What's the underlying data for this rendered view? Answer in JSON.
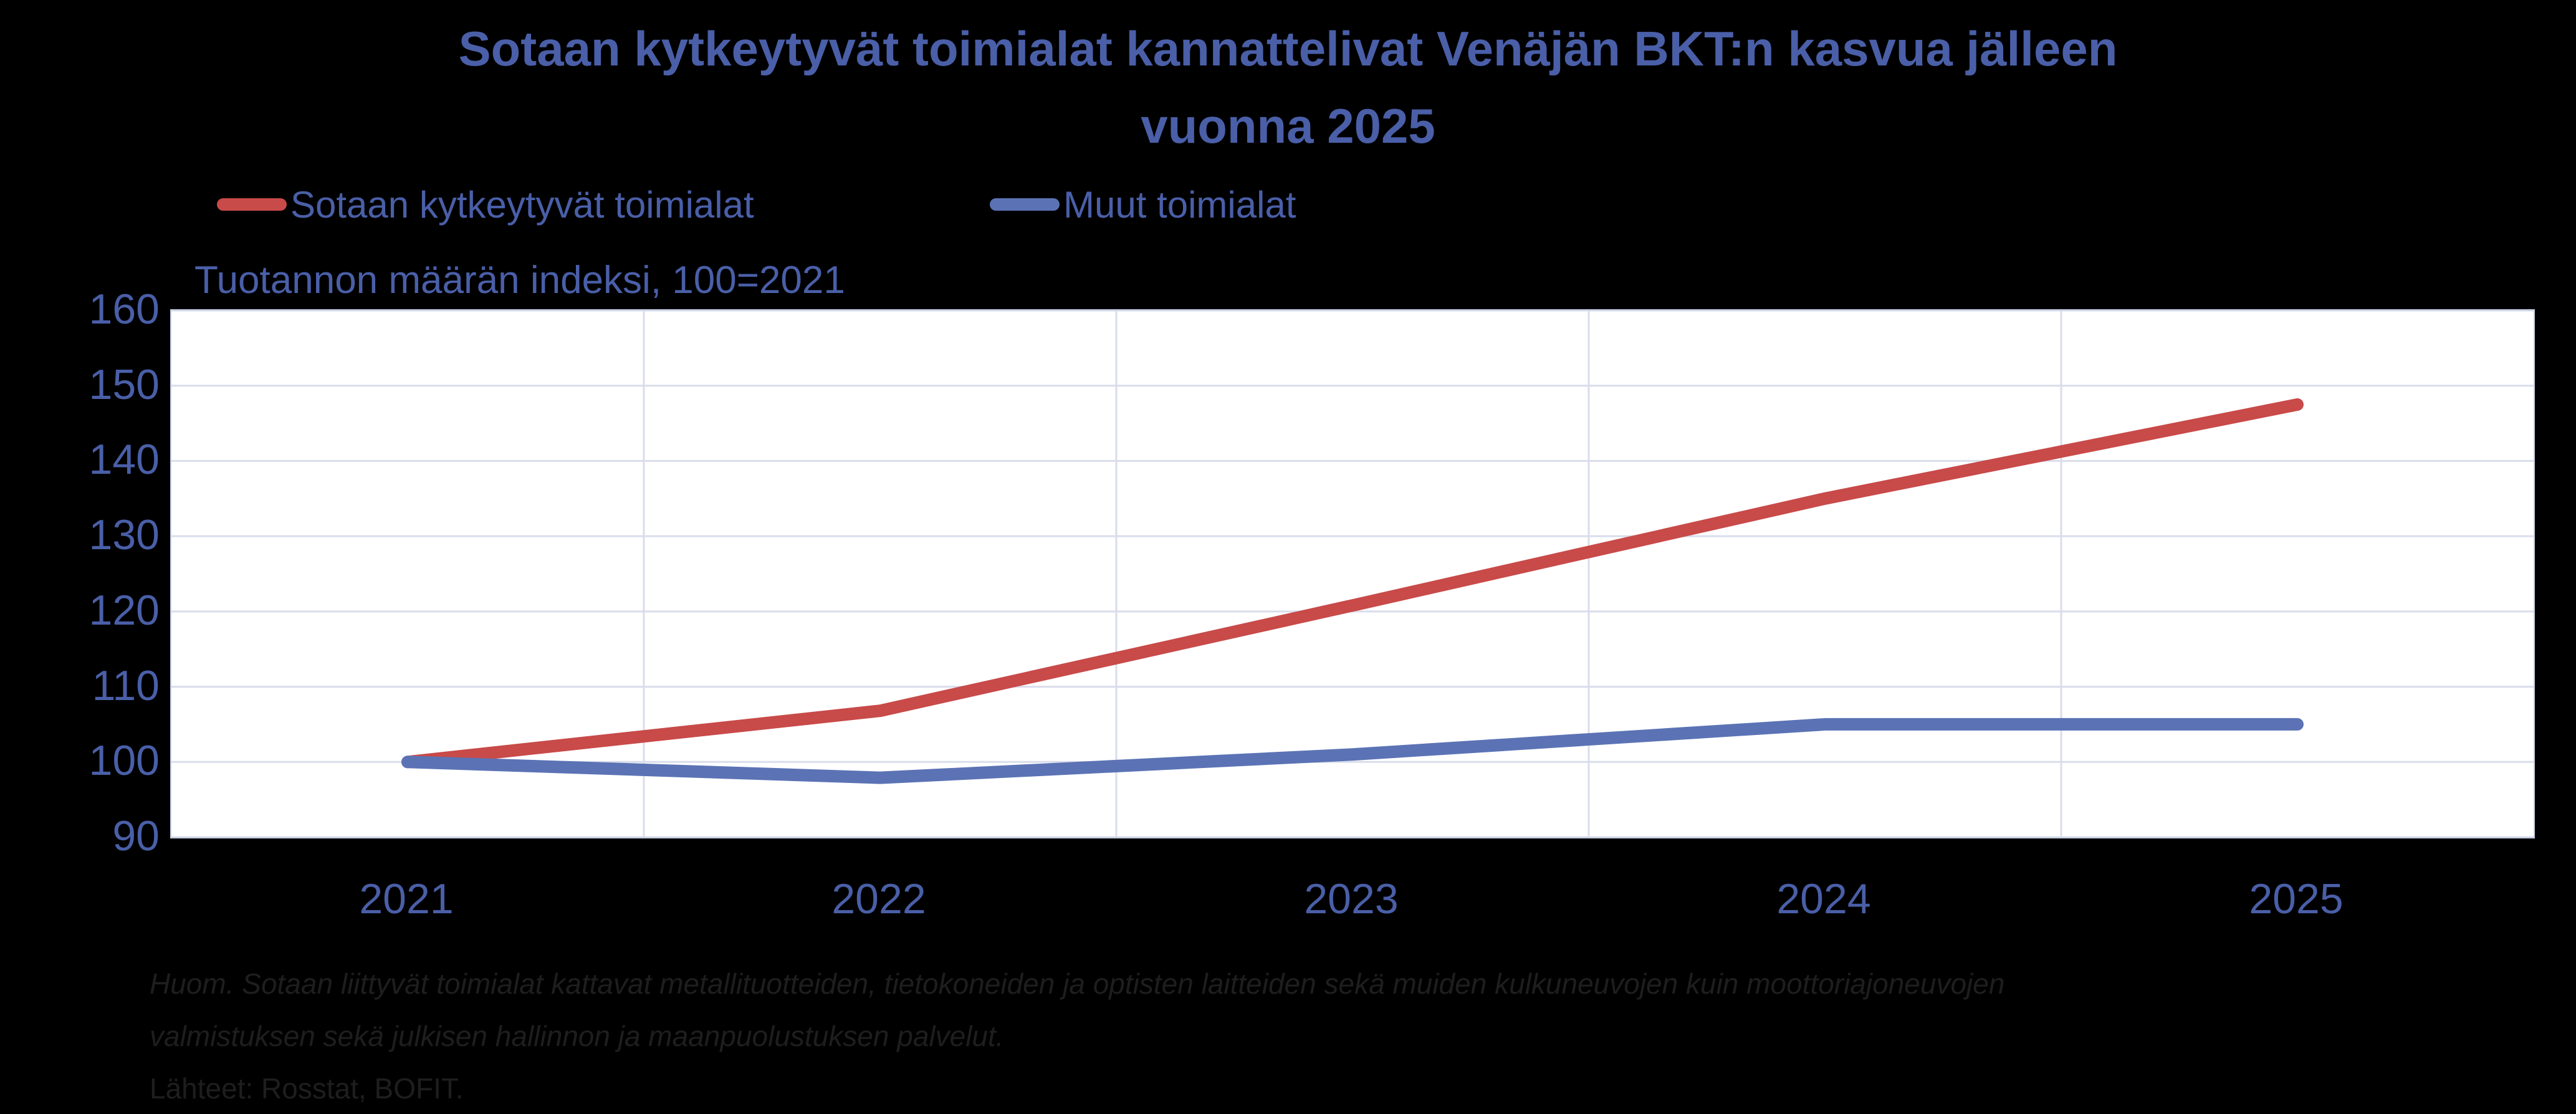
{
  "page": {
    "background": "#000000"
  },
  "header": {
    "title_lines": [
      "Sotaan kytkeytyvät toimialat kannattelivat Venäjän BKT:n kasvua jälleen",
      "vuonna 2025"
    ]
  },
  "colors": {
    "text_blue": "#4A5FA8",
    "series_red": "#C84A49",
    "series_blue": "#5B73B5",
    "gridline": "#D9DDEB",
    "plot_border": "#C7CDE0",
    "plot_background": "#FFFFFF",
    "footnote_text": "#1E1E1E"
  },
  "chart_data": {
    "type": "line",
    "title": "Sotaan kytkeytyvät toimialat kannattelivat Venäjän BKT:n kasvua jälleen vuonna 2025",
    "subtitle": "Tuotannon määrän indeksi, 100=2021",
    "x": [
      2021,
      2022,
      2023,
      2024,
      2025
    ],
    "xticklabels": [
      "2021",
      "2022",
      "2023",
      "2024",
      "2025"
    ],
    "series": [
      {
        "name": "Sotaan kytkeytyvät toimialat",
        "color": "#C84A49",
        "values": [
          100,
          106.8,
          120.8,
          135,
          147.5
        ]
      },
      {
        "name": "Muut toimialat",
        "color": "#5B73B5",
        "values": [
          100,
          97.9,
          101,
          105,
          105
        ]
      }
    ],
    "ylim": [
      90,
      160
    ],
    "yticks": [
      90,
      100,
      110,
      120,
      130,
      140,
      150,
      160
    ],
    "grid": true,
    "legend_position": "top-left",
    "annotations": [
      "Huom. Sotaan liittyvät toimialat kattavat metallituotteiden, tietokoneiden ja optisten laitteiden sekä muiden kulkuneuvojen kuin moottoriajoneuvojen",
      "valmistuksen sekä julkisen hallinnon ja maanpuolustuksen palvelut.",
      "Lähteet: Rosstat, BOFIT."
    ]
  }
}
